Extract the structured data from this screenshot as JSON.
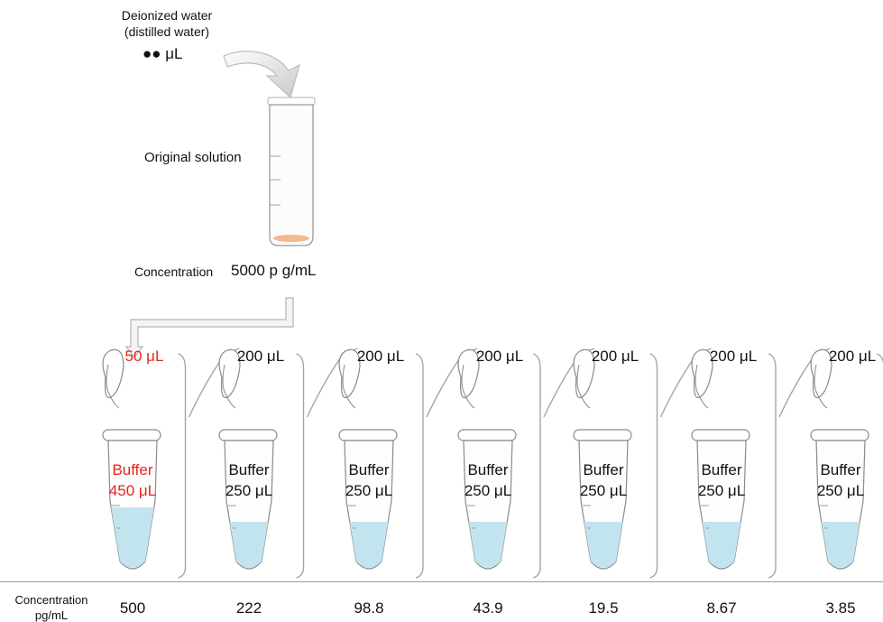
{
  "source": {
    "water_line1": "Deionized water",
    "water_line2": "(distilled water)",
    "water_amount": "●● μL",
    "tube_label": "Original solution",
    "concentration_label": "Concentration",
    "concentration_value": "5000 p g/mL"
  },
  "tubes": [
    {
      "transfer": "50 μL",
      "buffer_label": "Buffer",
      "buffer_volume": "450 μL",
      "concentration": "500",
      "highlight": true
    },
    {
      "transfer": "200 μL",
      "buffer_label": "Buffer",
      "buffer_volume": "250 μL",
      "concentration": "222",
      "highlight": false
    },
    {
      "transfer": "200 μL",
      "buffer_label": "Buffer",
      "buffer_volume": "250 μL",
      "concentration": "98.8",
      "highlight": false
    },
    {
      "transfer": "200 μL",
      "buffer_label": "Buffer",
      "buffer_volume": "250 μL",
      "concentration": "43.9",
      "highlight": false
    },
    {
      "transfer": "200 μL",
      "buffer_label": "Buffer",
      "buffer_volume": "250 μL",
      "concentration": "19.5",
      "highlight": false
    },
    {
      "transfer": "200 μL",
      "buffer_label": "Buffer",
      "buffer_volume": "250 μL",
      "concentration": "8.67",
      "highlight": false
    },
    {
      "transfer": "200 μL",
      "buffer_label": "Buffer",
      "buffer_volume": "250 μL",
      "concentration": "3.85",
      "highlight": false
    }
  ],
  "footer": {
    "row_label_line1": "Concentration",
    "row_label_line2": "pg/mL"
  },
  "colors": {
    "highlight": "#e5261f",
    "liquid": "#bfe3ee",
    "tube_outline": "#8a8a8a"
  }
}
